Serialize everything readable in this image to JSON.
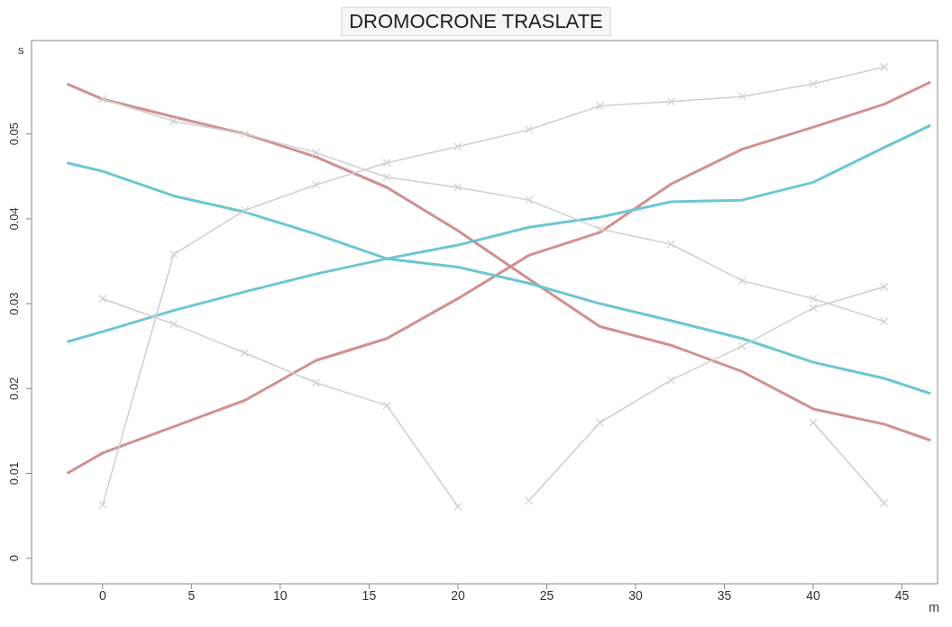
{
  "chart_data": {
    "type": "line",
    "title": "DROMOCRONE TRASLATE",
    "xlabel": "m",
    "ylabel": "s",
    "xlim": [
      -4,
      47
    ],
    "xticks": [
      0,
      5,
      10,
      15,
      20,
      25,
      30,
      35,
      40,
      45
    ],
    "ylim": [
      -0.003,
      0.061
    ],
    "yticks": [
      0,
      0.01,
      0.02,
      0.03,
      0.04,
      0.05
    ],
    "grid": false,
    "legend": false,
    "line_style": "solid",
    "series": [
      {
        "color": "#d09090",
        "marker": "none",
        "x": [
          -2,
          0,
          4,
          8,
          12,
          16,
          20,
          24,
          28,
          32,
          36,
          40,
          44,
          46.6
        ],
        "values": [
          0.0559,
          0.0541,
          0.052,
          0.05,
          0.0473,
          0.0437,
          0.0386,
          0.0329,
          0.0273,
          0.0251,
          0.022,
          0.0176,
          0.0158,
          0.0139
        ]
      },
      {
        "color": "#d09090",
        "marker": "none",
        "x": [
          -2,
          0,
          4,
          8,
          12,
          16,
          20,
          24,
          28,
          32,
          36,
          40,
          44,
          46.6
        ],
        "values": [
          0.01,
          0.0124,
          0.0155,
          0.0186,
          0.0233,
          0.0259,
          0.0306,
          0.0357,
          0.0384,
          0.0441,
          0.0482,
          0.0508,
          0.0535,
          0.0561
        ]
      },
      {
        "color": "#6cc6d2",
        "marker": "none",
        "x": [
          -2,
          0,
          4,
          8,
          12,
          16,
          20,
          24,
          28,
          32,
          36,
          40,
          44,
          46.6
        ],
        "values": [
          0.0466,
          0.0456,
          0.0427,
          0.0408,
          0.0382,
          0.0353,
          0.0343,
          0.0324,
          0.03,
          0.028,
          0.0259,
          0.0231,
          0.0212,
          0.0194
        ]
      },
      {
        "color": "#6cc6d2",
        "marker": "none",
        "x": [
          -2,
          0,
          4,
          8,
          12,
          16,
          20,
          24,
          28,
          32,
          36,
          40,
          44,
          46.6
        ],
        "values": [
          0.0255,
          0.0267,
          0.0292,
          0.0314,
          0.0335,
          0.0353,
          0.0369,
          0.039,
          0.0402,
          0.042,
          0.0422,
          0.0443,
          0.0484,
          0.051
        ]
      },
      {
        "color": "#cfcfcf",
        "marker": "cross",
        "x": [
          0,
          4,
          8,
          12,
          16,
          20,
          24,
          28,
          32,
          36,
          40,
          44
        ],
        "values": [
          0.0063,
          0.0358,
          0.041,
          0.044,
          0.0466,
          0.0485,
          0.0505,
          0.0533,
          0.0538,
          0.0544,
          0.0559,
          0.0579
        ]
      },
      {
        "color": "#cfcfcf",
        "marker": "cross",
        "x": [
          0,
          4,
          8,
          12,
          16,
          20
        ],
        "values": [
          0.0306,
          0.0276,
          0.0242,
          0.0207,
          0.018,
          0.0061
        ]
      },
      {
        "color": "#cfcfcf",
        "marker": "cross",
        "x": [
          24,
          28,
          32,
          36,
          40,
          44
        ],
        "values": [
          0.0068,
          0.016,
          0.021,
          0.025,
          0.0295,
          0.032
        ]
      },
      {
        "color": "#cfcfcf",
        "marker": "cross",
        "x": [
          0,
          4,
          8,
          12,
          16,
          20,
          24,
          28,
          32,
          36,
          40,
          44
        ],
        "values": [
          0.0541,
          0.0515,
          0.05,
          0.0478,
          0.0449,
          0.0437,
          0.0422,
          0.0388,
          0.037,
          0.0327,
          0.0306,
          0.0279
        ]
      },
      {
        "color": "#cfcfcf",
        "marker": "cross",
        "x": [
          40,
          44
        ],
        "values": [
          0.016,
          0.0065
        ]
      }
    ]
  }
}
